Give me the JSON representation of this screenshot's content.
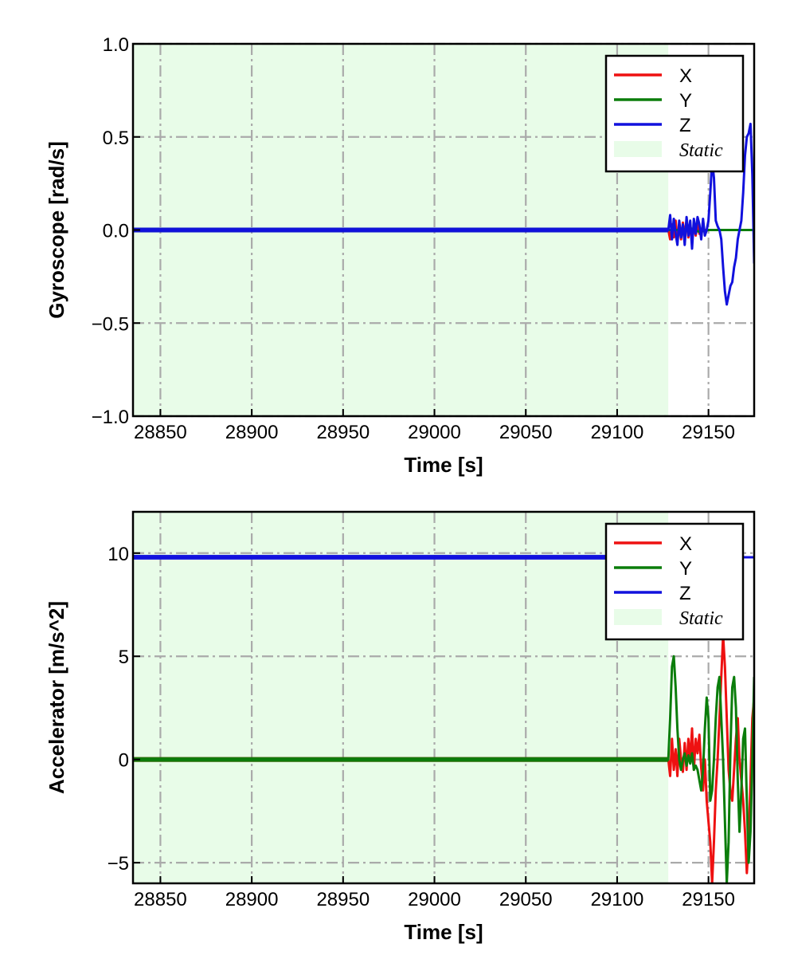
{
  "colors": {
    "x": "#ee1111",
    "y": "#0b7d0b",
    "z": "#1111dd",
    "static": "#e8fce8",
    "grid": "#aaaaaa"
  },
  "chart_data": [
    {
      "type": "line",
      "xlabel": "Time [s]",
      "ylabel": "Gyroscope [rad/s]",
      "xlim": [
        28835,
        29175
      ],
      "ylim": [
        -1.0,
        1.0
      ],
      "xticks": [
        28850,
        28900,
        28950,
        29000,
        29050,
        29100,
        29150
      ],
      "yticks": [
        -1.0,
        -0.5,
        0.0,
        0.5,
        1.0
      ],
      "ytick_labels": [
        "−1.0",
        "−0.5",
        "0.0",
        "0.5",
        "1.0"
      ],
      "grid": true,
      "legend_position": "top-right",
      "static_region": {
        "label": "Static",
        "x": [
          28835,
          29128
        ]
      },
      "series": [
        {
          "name": "X",
          "color": "#ee1111",
          "x": [
            28835,
            29128,
            29129,
            29130,
            29131,
            29132,
            29133,
            29134,
            29135,
            29136,
            29137,
            29138,
            29139,
            29140,
            29141,
            29142,
            29143,
            29144,
            29145,
            29147,
            29150,
            29155,
            29160,
            29165,
            29170,
            29175
          ],
          "y": [
            0,
            0,
            -0.05,
            0.03,
            -0.04,
            0.05,
            -0.06,
            0.02,
            -0.05,
            0.04,
            -0.03,
            0.05,
            -0.04,
            0.03,
            -0.05,
            0.02,
            -0.03,
            0.04,
            -0.02,
            0.0,
            0.0,
            0.0,
            0.0,
            0.0,
            0.0,
            0.0
          ]
        },
        {
          "name": "Y",
          "color": "#0b7d0b",
          "x": [
            28835,
            29128,
            29135,
            29140,
            29145,
            29150,
            29155,
            29160,
            29165,
            29170,
            29175
          ],
          "y": [
            0,
            0,
            0.0,
            0.01,
            -0.01,
            0.0,
            0.0,
            0.0,
            0.0,
            0.0,
            0.0
          ]
        },
        {
          "name": "Z",
          "color": "#1111dd",
          "x": [
            28835,
            29128,
            29129,
            29130,
            29131,
            29132,
            29133,
            29134,
            29135,
            29136,
            29137,
            29138,
            29139,
            29140,
            29141,
            29142,
            29143,
            29144,
            29145,
            29146,
            29147,
            29148,
            29149,
            29150,
            29151,
            29152,
            29153,
            29154,
            29155,
            29156,
            29157,
            29158,
            29159,
            29160,
            29161,
            29162,
            29163,
            29164,
            29165,
            29166,
            29167,
            29168,
            29169,
            29170,
            29171,
            29172,
            29173,
            29174,
            29175
          ],
          "y": [
            0,
            0,
            0.08,
            -0.05,
            0.06,
            -0.02,
            -0.08,
            0.05,
            -0.04,
            0.03,
            -0.08,
            0.07,
            -0.03,
            0.05,
            -0.1,
            0.06,
            -0.02,
            0.07,
            0.03,
            -0.05,
            0.06,
            -0.03,
            0.0,
            0.05,
            0.2,
            0.37,
            0.28,
            0.05,
            0.02,
            0.0,
            -0.05,
            -0.2,
            -0.33,
            -0.4,
            -0.35,
            -0.3,
            -0.28,
            -0.2,
            -0.15,
            -0.05,
            0.0,
            0.05,
            0.2,
            0.4,
            0.5,
            0.52,
            0.57,
            0.3,
            -0.18
          ]
        }
      ]
    },
    {
      "type": "line",
      "xlabel": "Time [s]",
      "ylabel": "Accelerator [m/s^2]",
      "xlim": [
        28835,
        29175
      ],
      "ylim": [
        -6,
        12
      ],
      "xticks": [
        28850,
        28900,
        28950,
        29000,
        29050,
        29100,
        29150
      ],
      "yticks": [
        -5,
        0,
        5,
        10
      ],
      "ytick_labels": [
        "−5",
        "0",
        "5",
        "10"
      ],
      "grid": true,
      "legend_position": "top-right",
      "static_region": {
        "label": "Static",
        "x": [
          28835,
          29128
        ]
      },
      "series": [
        {
          "name": "X",
          "color": "#ee1111",
          "x": [
            28835,
            29128,
            29129,
            29130,
            29131,
            29132,
            29133,
            29134,
            29135,
            29136,
            29137,
            29138,
            29139,
            29140,
            29141,
            29142,
            29143,
            29144,
            29145,
            29146,
            29147,
            29148,
            29149,
            29150,
            29151,
            29152,
            29153,
            29154,
            29155,
            29156,
            29157,
            29158,
            29159,
            29160,
            29161,
            29162,
            29163,
            29164,
            29165,
            29166,
            29167,
            29168,
            29169,
            29170,
            29171,
            29172,
            29173,
            29174,
            29175
          ],
          "y": [
            0,
            0,
            -0.8,
            1.0,
            -0.5,
            0.5,
            -0.8,
            1.0,
            0.0,
            -0.6,
            0.8,
            -0.5,
            1.0,
            0.0,
            1.5,
            -0.5,
            1.0,
            0.3,
            1.2,
            -0.4,
            -1.5,
            0.0,
            -2.0,
            -3.0,
            -4.0,
            -6.0,
            -4.0,
            -1.5,
            0.0,
            2.0,
            4.0,
            6.0,
            4.5,
            2.0,
            -0.5,
            -1.5,
            -2.0,
            -0.5,
            1.0,
            2.0,
            0.0,
            -1.0,
            -2.0,
            -3.5,
            -5.5,
            -4.0,
            -1.0,
            2.0,
            3.0
          ]
        },
        {
          "name": "Y",
          "color": "#0b7d0b",
          "x": [
            28835,
            29128,
            29129,
            29130,
            29131,
            29132,
            29133,
            29134,
            29135,
            29136,
            29137,
            29138,
            29139,
            29140,
            29141,
            29142,
            29143,
            29144,
            29145,
            29146,
            29147,
            29148,
            29149,
            29150,
            29151,
            29152,
            29153,
            29154,
            29155,
            29156,
            29157,
            29158,
            29159,
            29160,
            29161,
            29162,
            29163,
            29164,
            29165,
            29166,
            29167,
            29168,
            29169,
            29170,
            29171,
            29172,
            29173,
            29174,
            29175
          ],
          "y": [
            0,
            0,
            2.0,
            4.5,
            5.0,
            3.5,
            1.5,
            0.0,
            -0.5,
            0.0,
            0.3,
            -0.3,
            0.2,
            -0.2,
            0.3,
            -0.5,
            -0.3,
            -0.5,
            -1.0,
            -1.5,
            -0.5,
            1.5,
            3.0,
            2.0,
            -2.0,
            -1.5,
            0.0,
            2.0,
            3.5,
            4.0,
            2.0,
            0.0,
            -3.0,
            -6.0,
            -4.0,
            0.5,
            3.5,
            4.0,
            2.5,
            -1.0,
            -3.5,
            -1.5,
            1.0,
            1.5,
            -2.0,
            -5.0,
            -3.5,
            0.0,
            4.0
          ]
        },
        {
          "name": "Z",
          "color": "#1111dd",
          "x": [
            28835,
            29175
          ],
          "y": [
            9.8,
            9.8
          ]
        }
      ]
    }
  ]
}
